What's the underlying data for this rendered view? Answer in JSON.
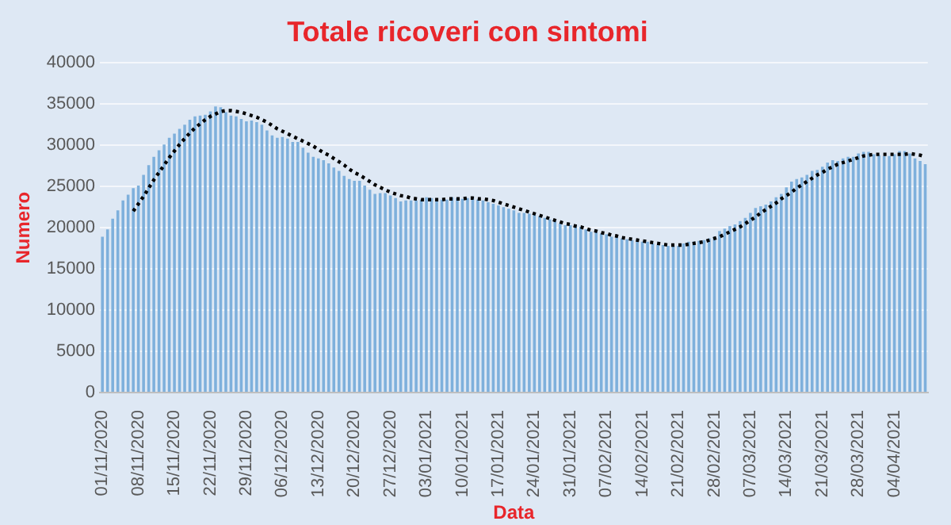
{
  "chart_data": {
    "type": "bar",
    "title": "Totale ricoveri con sintomi",
    "xlabel": "Data",
    "ylabel": "Numero",
    "categories": [
      "01/11/2020",
      null,
      null,
      null,
      null,
      null,
      null,
      "08/11/2020",
      null,
      null,
      null,
      null,
      null,
      null,
      "15/11/2020",
      null,
      null,
      null,
      null,
      null,
      null,
      "22/11/2020",
      null,
      null,
      null,
      null,
      null,
      null,
      "29/11/2020",
      null,
      null,
      null,
      null,
      null,
      null,
      "06/12/2020",
      null,
      null,
      null,
      null,
      null,
      null,
      "13/12/2020",
      null,
      null,
      null,
      null,
      null,
      null,
      "20/12/2020",
      null,
      null,
      null,
      null,
      null,
      null,
      "27/12/2020",
      null,
      null,
      null,
      null,
      null,
      null,
      "03/01/2021",
      null,
      null,
      null,
      null,
      null,
      null,
      "10/01/2021",
      null,
      null,
      null,
      null,
      null,
      null,
      "17/01/2021",
      null,
      null,
      null,
      null,
      null,
      null,
      "24/01/2021",
      null,
      null,
      null,
      null,
      null,
      null,
      "31/01/2021",
      null,
      null,
      null,
      null,
      null,
      null,
      "07/02/2021",
      null,
      null,
      null,
      null,
      null,
      null,
      "14/02/2021",
      null,
      null,
      null,
      null,
      null,
      null,
      "21/02/2021",
      null,
      null,
      null,
      null,
      null,
      null,
      "28/02/2021",
      null,
      null,
      null,
      null,
      null,
      null,
      "07/03/2021",
      null,
      null,
      null,
      null,
      null,
      null,
      "14/03/2021",
      null,
      null,
      null,
      null,
      null,
      null,
      "21/03/2021",
      null,
      null,
      null,
      null,
      null,
      null,
      "28/03/2021",
      null,
      null,
      null,
      null,
      null,
      null,
      "04/04/2021",
      null,
      null,
      null,
      null,
      null,
      null
    ],
    "series": [
      {
        "color": "#7eb0dc",
        "values": [
          18900,
          19800,
          21100,
          22100,
          23300,
          24000,
          24800,
          25100,
          26400,
          27600,
          28600,
          29400,
          30100,
          30900,
          31400,
          32000,
          32500,
          33100,
          33500,
          33600,
          33700,
          34100,
          34700,
          34600,
          34000,
          33600,
          33500,
          33200,
          32900,
          33000,
          32800,
          32500,
          31800,
          31200,
          30900,
          31000,
          30800,
          30400,
          30400,
          29700,
          29100,
          28600,
          28400,
          28200,
          27800,
          27300,
          26900,
          26300,
          25900,
          25700,
          25700,
          25100,
          24600,
          24100,
          24200,
          24200,
          23900,
          23600,
          23200,
          23300,
          23300,
          23300,
          23400,
          23700,
          23600,
          23400,
          23400,
          23400,
          23700,
          23600,
          23500,
          23600,
          23700,
          23400,
          23300,
          23100,
          22900,
          22700,
          22500,
          22300,
          22100,
          21800,
          21800,
          21700,
          21600,
          21400,
          21200,
          21000,
          20800,
          20500,
          20300,
          20300,
          20300,
          20100,
          19800,
          19500,
          19500,
          19300,
          19200,
          18900,
          18900,
          18700,
          18600,
          18500,
          18300,
          18300,
          18300,
          18100,
          17900,
          17900,
          17800,
          17800,
          17800,
          18100,
          18300,
          18300,
          18400,
          18500,
          18700,
          18900,
          19600,
          19900,
          20200,
          20400,
          20800,
          21200,
          21800,
          22400,
          22600,
          22800,
          23200,
          23700,
          24100,
          24900,
          25600,
          25900,
          26100,
          26400,
          26900,
          27000,
          27400,
          27900,
          28200,
          28100,
          28400,
          28600,
          28600,
          29000,
          29200,
          29200,
          28900,
          28800,
          28700,
          28700,
          28900,
          29300,
          29300,
          29000,
          28400,
          28100,
          27700
        ]
      },
      {
        "type": "line",
        "color": "#000000",
        "line_style": "dotted",
        "values": [
          null,
          null,
          null,
          null,
          null,
          null,
          22000,
          22900,
          23800,
          24800,
          25800,
          26700,
          27600,
          28500,
          29300,
          30100,
          30800,
          31500,
          32100,
          32600,
          33100,
          33500,
          33800,
          34100,
          34200,
          34200,
          34100,
          34000,
          33800,
          33600,
          33400,
          33100,
          32800,
          32400,
          32000,
          31700,
          31400,
          31100,
          30800,
          30500,
          30200,
          29900,
          29500,
          29100,
          28800,
          28400,
          28000,
          27600,
          27100,
          26700,
          26400,
          26000,
          25600,
          25200,
          24900,
          24600,
          24300,
          24100,
          23900,
          23800,
          23600,
          23500,
          23400,
          23400,
          23400,
          23400,
          23400,
          23500,
          23500,
          23500,
          23500,
          23600,
          23600,
          23500,
          23500,
          23400,
          23300,
          23100,
          22900,
          22700,
          22500,
          22300,
          22100,
          21900,
          21700,
          21500,
          21300,
          21100,
          20900,
          20700,
          20500,
          20400,
          20200,
          20100,
          19900,
          19700,
          19600,
          19400,
          19300,
          19100,
          19000,
          18800,
          18700,
          18600,
          18500,
          18400,
          18300,
          18200,
          18100,
          18000,
          17900,
          17900,
          17900,
          17900,
          18000,
          18100,
          18200,
          18300,
          18500,
          18700,
          18900,
          19200,
          19500,
          19800,
          20100,
          20500,
          20900,
          21300,
          21800,
          22200,
          22600,
          23000,
          23500,
          23900,
          24300,
          24800,
          25200,
          25600,
          26000,
          26400,
          26700,
          27100,
          27400,
          27700,
          27900,
          28100,
          28300,
          28500,
          28700,
          28800,
          28900,
          28900,
          28900,
          28900,
          28900,
          28900,
          28900,
          29000,
          28900,
          28800,
          28600
        ]
      }
    ],
    "ylim": [
      0,
      40000
    ],
    "yticks": [
      0,
      5000,
      10000,
      15000,
      20000,
      25000,
      30000,
      35000,
      40000
    ],
    "grid": "y",
    "legend": false,
    "marker": "none"
  }
}
